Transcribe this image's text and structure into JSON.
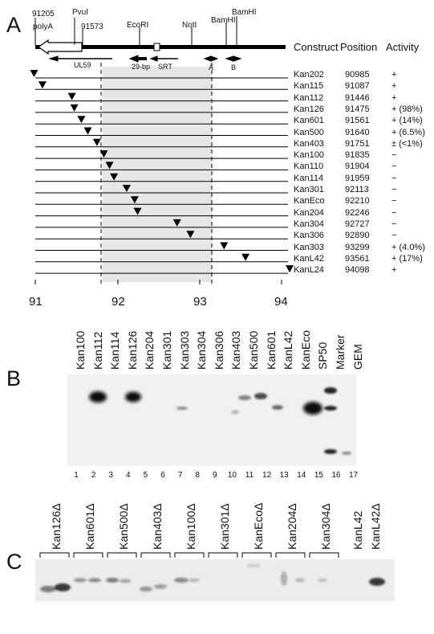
{
  "panels": {
    "a": "A",
    "b": "B",
    "c": "C"
  },
  "map": {
    "site_labels": [
      {
        "text": "91205"
      },
      {
        "text": "polyA"
      },
      {
        "text": "PvuI"
      },
      {
        "text": "91573"
      },
      {
        "text": "EcoRI"
      },
      {
        "text": "NotI"
      },
      {
        "text": "BamHI"
      },
      {
        "text": "BamHI"
      }
    ],
    "arrow_labels": [
      {
        "text": "UL59"
      },
      {
        "text": "29-bp"
      },
      {
        "text": "SRT"
      },
      {
        "text": "A"
      },
      {
        "text": "B"
      }
    ]
  },
  "table": {
    "headers": {
      "construct": "Construct",
      "position": "Position",
      "activity": "Activity"
    },
    "rows": [
      {
        "construct": "Kan202",
        "position": "90985",
        "activity": "+"
      },
      {
        "construct": "Kan115",
        "position": "91087",
        "activity": "+"
      },
      {
        "construct": "Kan112",
        "position": "91446",
        "activity": "+"
      },
      {
        "construct": "Kan126",
        "position": "91475",
        "activity": "+ (98%)"
      },
      {
        "construct": "Kan601",
        "position": "91561",
        "activity": "+ (14%)"
      },
      {
        "construct": "Kan500",
        "position": "91640",
        "activity": "+ (6.5%)"
      },
      {
        "construct": "Kan403",
        "position": "91751",
        "activity": "± (<1%)"
      },
      {
        "construct": "Kan100",
        "position": "91835",
        "activity": "−"
      },
      {
        "construct": "Kan110",
        "position": "91904",
        "activity": "−"
      },
      {
        "construct": "Kan114",
        "position": "91959",
        "activity": "−"
      },
      {
        "construct": "Kan301",
        "position": "92113",
        "activity": "−"
      },
      {
        "construct": "KanEco",
        "position": "92210",
        "activity": "−"
      },
      {
        "construct": "Kan204",
        "position": "92246",
        "activity": "−"
      },
      {
        "construct": "Kan304",
        "position": "92727",
        "activity": "−"
      },
      {
        "construct": "Kan306",
        "position": "92890",
        "activity": "−"
      },
      {
        "construct": "Kan303",
        "position": "93299",
        "activity": "+ (4.0%)"
      },
      {
        "construct": "KanL42",
        "position": "93561",
        "activity": "+ (17%)"
      },
      {
        "construct": "KanL24",
        "position": "94098",
        "activity": "+"
      }
    ]
  },
  "axis": {
    "ticks": [
      "91",
      "92",
      "93",
      "94"
    ]
  },
  "gel_b": {
    "lanes": [
      "Kan100",
      "Kan112",
      "Kan114",
      "Kan126",
      "Kan204",
      "Kan301",
      "Kan303",
      "Kan304",
      "Kan306",
      "Kan403",
      "Kan500",
      "Kan601",
      "KanL42",
      "KanEco",
      "SP50",
      "Marker",
      "GEM"
    ],
    "numbers": [
      "1",
      "2",
      "3",
      "4",
      "5",
      "6",
      "7",
      "8",
      "9",
      "10",
      "11",
      "12",
      "13",
      "14",
      "15",
      "16",
      "17"
    ]
  },
  "gel_c": {
    "lanes": [
      "Kan126Δ",
      "Kan601Δ",
      "Kan500Δ",
      "Kan403Δ",
      "Kan100Δ",
      "Kan301Δ",
      "KanEcoΔ",
      "Kan204Δ",
      "Kan304Δ",
      "KanL42",
      "KanL42Δ"
    ]
  }
}
